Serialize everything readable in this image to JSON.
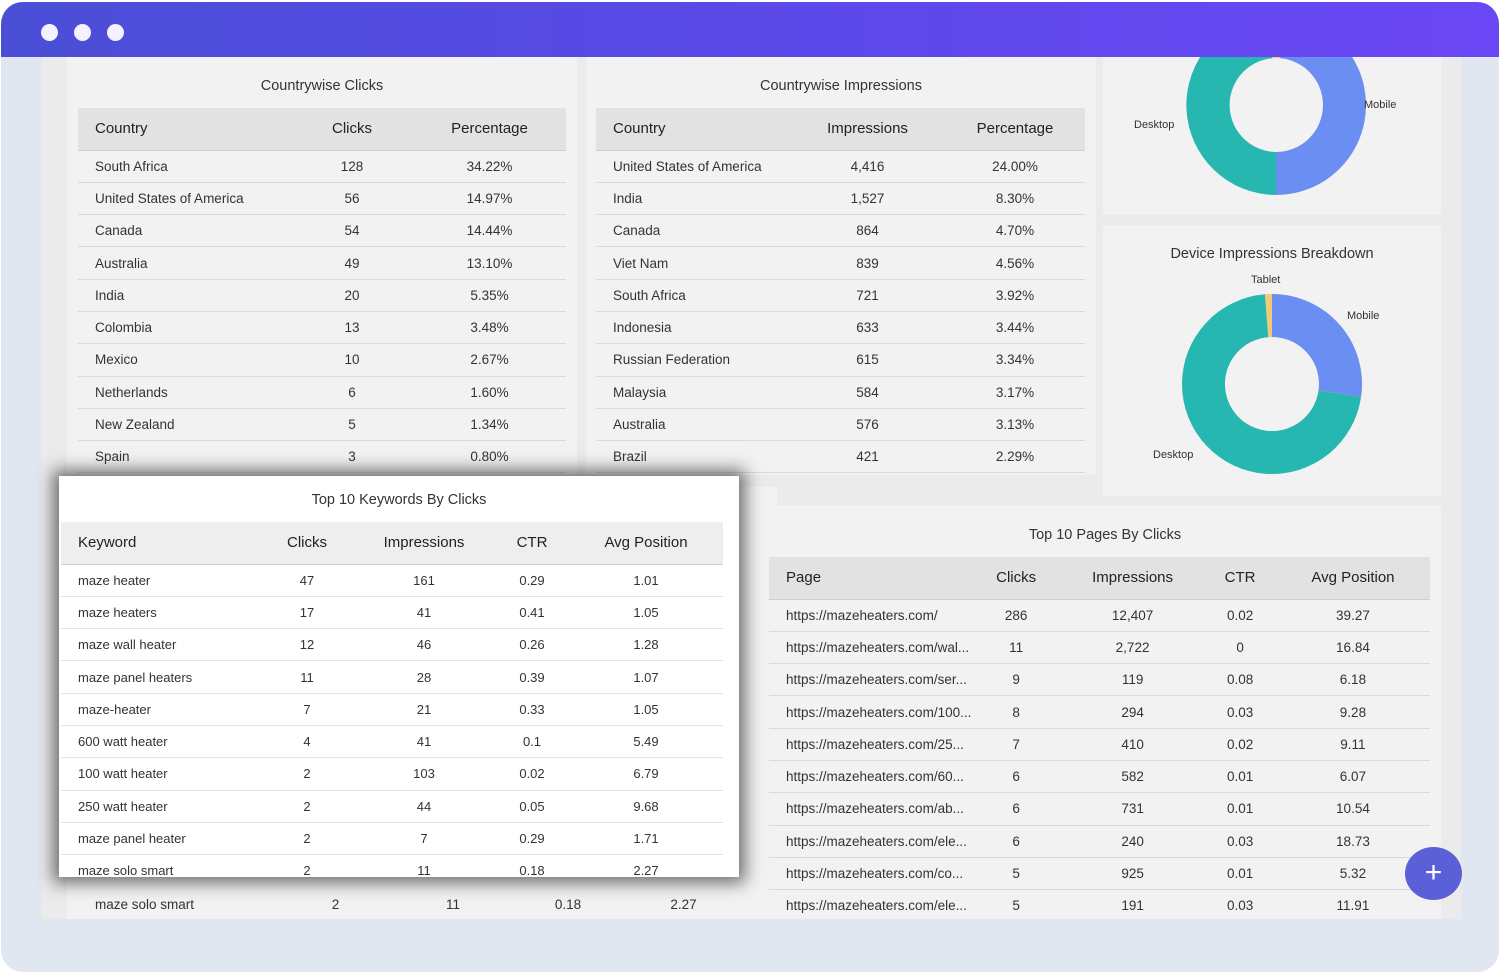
{
  "colors": {
    "titlebar_start": "#4a4fd6",
    "titlebar_end": "#6a47f4",
    "donut_mobile": "#6b8ef2",
    "donut_desktop": "#26b8b0",
    "donut_tablet": "#f2c879",
    "fab": "#5b60d8"
  },
  "clicks_table": {
    "title": "Countrywise Clicks",
    "headers": [
      "Country",
      "Clicks",
      "Percentage"
    ],
    "rows": [
      [
        "South Africa",
        "128",
        "34.22%"
      ],
      [
        "United States of America",
        "56",
        "14.97%"
      ],
      [
        "Canada",
        "54",
        "14.44%"
      ],
      [
        "Australia",
        "49",
        "13.10%"
      ],
      [
        "India",
        "20",
        "5.35%"
      ],
      [
        "Colombia",
        "13",
        "3.48%"
      ],
      [
        "Mexico",
        "10",
        "2.67%"
      ],
      [
        "Netherlands",
        "6",
        "1.60%"
      ],
      [
        "New Zealand",
        "5",
        "1.34%"
      ],
      [
        "Spain",
        "3",
        "0.80%"
      ]
    ]
  },
  "impressions_table": {
    "title": "Countrywise Impressions",
    "headers": [
      "Country",
      "Impressions",
      "Percentage"
    ],
    "rows": [
      [
        "United States of America",
        "4,416",
        "24.00%"
      ],
      [
        "India",
        "1,527",
        "8.30%"
      ],
      [
        "Canada",
        "864",
        "4.70%"
      ],
      [
        "Viet Nam",
        "839",
        "4.56%"
      ],
      [
        "South Africa",
        "721",
        "3.92%"
      ],
      [
        "Indonesia",
        "633",
        "3.44%"
      ],
      [
        "Russian Federation",
        "615",
        "3.34%"
      ],
      [
        "Malaysia",
        "584",
        "3.17%"
      ],
      [
        "Australia",
        "576",
        "3.13%"
      ],
      [
        "Brazil",
        "421",
        "2.29%"
      ]
    ]
  },
  "device_clicks_chart": {
    "labels": {
      "mobile": "Mobile",
      "desktop": "Desktop"
    }
  },
  "device_impressions_chart": {
    "title": "Device Impressions Breakdown",
    "labels": {
      "tablet": "Tablet",
      "mobile": "Mobile",
      "desktop": "Desktop"
    }
  },
  "keywords_table": {
    "title": "Top 10 Keywords By Clicks",
    "headers": [
      "Keyword",
      "Clicks",
      "Impressions",
      "CTR",
      "Avg Position"
    ],
    "rows": [
      [
        "maze heater",
        "47",
        "161",
        "0.29",
        "1.01"
      ],
      [
        "maze heaters",
        "17",
        "41",
        "0.41",
        "1.05"
      ],
      [
        "maze wall heater",
        "12",
        "46",
        "0.26",
        "1.28"
      ],
      [
        "maze panel heaters",
        "11",
        "28",
        "0.39",
        "1.07"
      ],
      [
        "maze-heater",
        "7",
        "21",
        "0.33",
        "1.05"
      ],
      [
        "600 watt heater",
        "4",
        "41",
        "0.1",
        "5.49"
      ],
      [
        "100 watt heater",
        "2",
        "103",
        "0.02",
        "6.79"
      ],
      [
        "250 watt heater",
        "2",
        "44",
        "0.05",
        "9.68"
      ],
      [
        "maze panel heater",
        "2",
        "7",
        "0.29",
        "1.71"
      ],
      [
        "maze solo smart",
        "2",
        "11",
        "0.18",
        "2.27"
      ]
    ],
    "background_row": [
      "maze solo smart",
      "2",
      "11",
      "0.18",
      "2.27"
    ]
  },
  "pages_table": {
    "title": "Top 10 Pages By Clicks",
    "headers": [
      "Page",
      "Clicks",
      "Impressions",
      "CTR",
      "Avg Position"
    ],
    "rows": [
      [
        "https://mazeheaters.com/",
        "286",
        "12,407",
        "0.02",
        "39.27"
      ],
      [
        "https://mazeheaters.com/wal...",
        "11",
        "2,722",
        "0",
        "16.84"
      ],
      [
        "https://mazeheaters.com/ser...",
        "9",
        "119",
        "0.08",
        "6.18"
      ],
      [
        "https://mazeheaters.com/100...",
        "8",
        "294",
        "0.03",
        "9.28"
      ],
      [
        "https://mazeheaters.com/25...",
        "7",
        "410",
        "0.02",
        "9.11"
      ],
      [
        "https://mazeheaters.com/60...",
        "6",
        "582",
        "0.01",
        "6.07"
      ],
      [
        "https://mazeheaters.com/ab...",
        "6",
        "731",
        "0.01",
        "10.54"
      ],
      [
        "https://mazeheaters.com/ele...",
        "6",
        "240",
        "0.03",
        "18.73"
      ],
      [
        "https://mazeheaters.com/co...",
        "5",
        "925",
        "0.01",
        "5.32"
      ],
      [
        "https://mazeheaters.com/ele...",
        "5",
        "191",
        "0.03",
        "11.91"
      ]
    ]
  },
  "fab": {
    "label": "+"
  }
}
